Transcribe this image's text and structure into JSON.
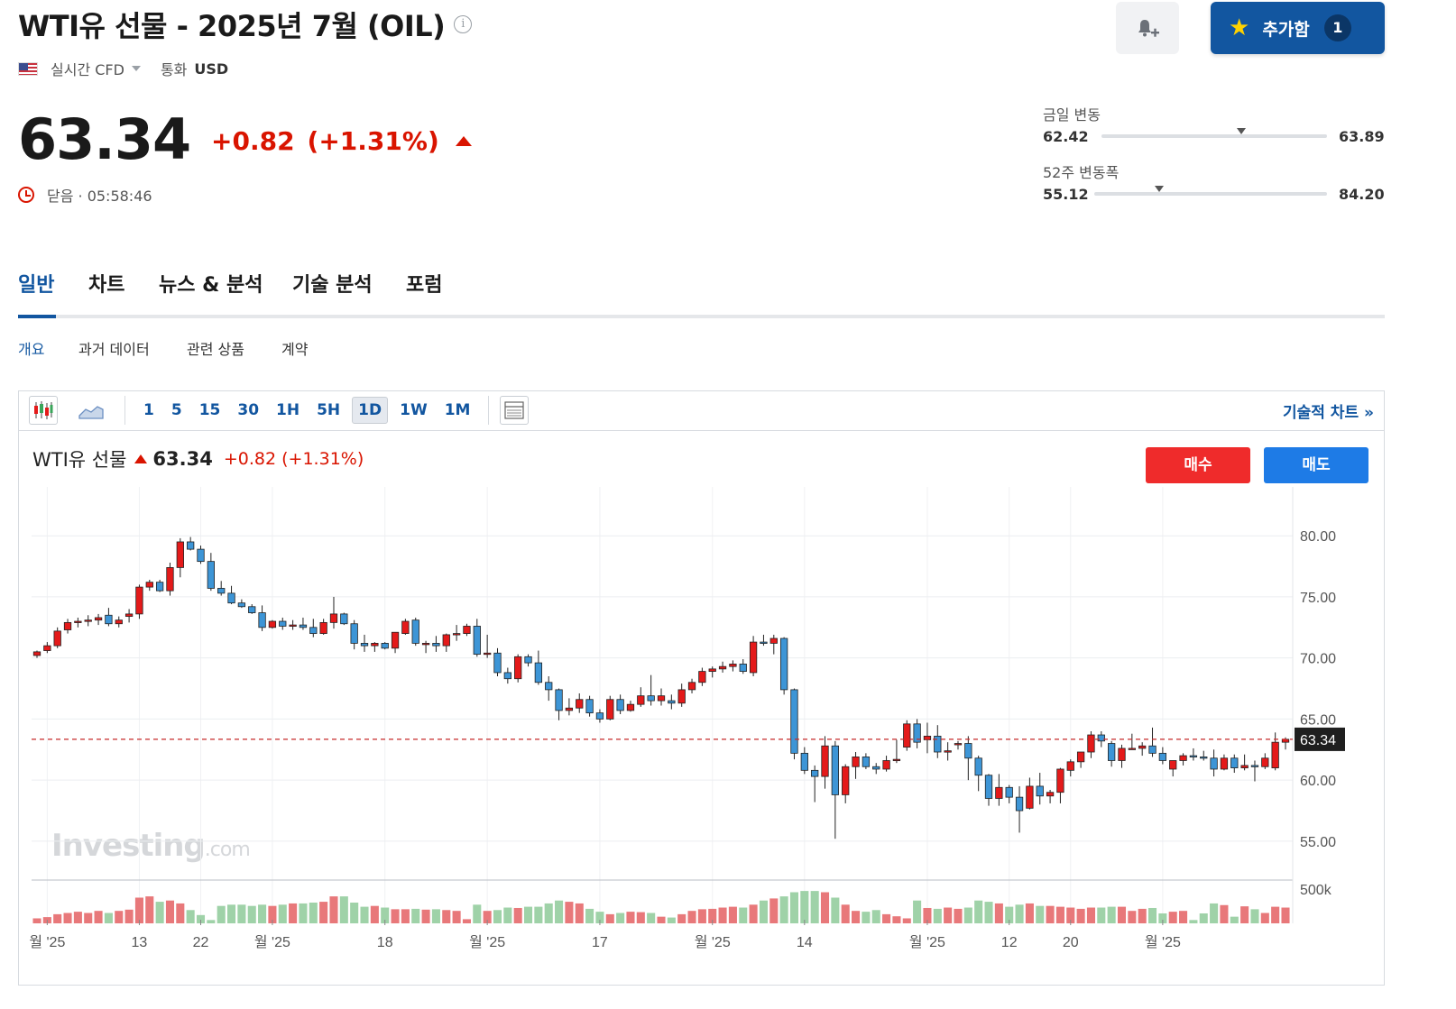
{
  "header": {
    "title": "WTI유 선물 - 2025년 7월 (OIL)",
    "info_icon": "i",
    "feed": "실시간 CFD",
    "currency_label": "통화",
    "currency_value": "USD",
    "watchlist_label": "추가함",
    "watchlist_count": "1"
  },
  "price": {
    "last": "63.34",
    "change": "+0.82",
    "change_pct": "(+1.31%)",
    "status": "닫음 · 05:58:46"
  },
  "ranges": {
    "day": {
      "label": "금일 변동",
      "low": "62.42",
      "high": "63.89",
      "marker_fraction": 0.62
    },
    "week52": {
      "label": "52주 변동폭",
      "low": "55.12",
      "high": "84.20",
      "marker_fraction": 0.28
    }
  },
  "tabs": [
    {
      "label": "일반"
    },
    {
      "label": "차트"
    },
    {
      "label": "뉴스 & 분석"
    },
    {
      "label": "기술 분석"
    },
    {
      "label": "포럼"
    }
  ],
  "subtabs": [
    {
      "label": "개요"
    },
    {
      "label": "과거 데이터"
    },
    {
      "label": "관련 상품"
    },
    {
      "label": "계약"
    }
  ],
  "toolbar": {
    "timeframes": [
      "1",
      "5",
      "15",
      "30",
      "1H",
      "5H",
      "1D",
      "1W",
      "1M"
    ],
    "active_timeframe": "1D",
    "tech_chart_link": "기술적 차트 »"
  },
  "chart_head": {
    "name": "WTI유 선물",
    "price": "63.34",
    "change": "+0.82",
    "change_pct": "(+1.31%)"
  },
  "buttons": {
    "buy": "매수",
    "sell": "매도"
  },
  "watermark": {
    "brand": "Investing",
    "suffix": ".com"
  },
  "colors": {
    "up": "#e41a1a",
    "down": "#3d95d6",
    "accent": "#1256a0",
    "negative_text": "#d91400",
    "volume_up": "#e8787a",
    "volume_down": "#9fd2a8"
  },
  "chart_data": {
    "type": "candlestick",
    "interval": "1D",
    "y_ticks": [
      "80.00",
      "75.00",
      "70.00",
      "65.00",
      "60.00",
      "55.00"
    ],
    "y_tick_values": [
      80,
      75,
      70,
      65,
      60,
      55
    ],
    "ylim": [
      53,
      84
    ],
    "volume_tick": "500k",
    "last_price_label": "63.34",
    "last_price": 63.34,
    "x_labels": [
      {
        "label": "월 '25",
        "index": 1
      },
      {
        "label": "13",
        "index": 10
      },
      {
        "label": "22",
        "index": 16
      },
      {
        "label": "월 '25",
        "index": 23
      },
      {
        "label": "18",
        "index": 34
      },
      {
        "label": "월 '25",
        "index": 44
      },
      {
        "label": "17",
        "index": 55
      },
      {
        "label": "월 '25",
        "index": 66
      },
      {
        "label": "14",
        "index": 75
      },
      {
        "label": "월 '25",
        "index": 87
      },
      {
        "label": "12",
        "index": 95
      },
      {
        "label": "20",
        "index": 101
      },
      {
        "label": "월 '25",
        "index": 110
      }
    ],
    "candles": [
      [
        70.2,
        70.6,
        70.0,
        70.5
      ],
      [
        70.6,
        71.3,
        70.4,
        71.0
      ],
      [
        71.0,
        72.5,
        70.8,
        72.2
      ],
      [
        72.3,
        73.2,
        72.0,
        72.9
      ],
      [
        72.9,
        73.3,
        72.5,
        73.0
      ],
      [
        73.0,
        73.5,
        72.6,
        73.1
      ],
      [
        73.1,
        73.6,
        72.7,
        73.3
      ],
      [
        73.5,
        74.1,
        72.6,
        72.8
      ],
      [
        72.8,
        73.4,
        72.5,
        73.1
      ],
      [
        73.4,
        74.0,
        72.9,
        73.6
      ],
      [
        73.6,
        76.0,
        73.2,
        75.8
      ],
      [
        75.8,
        76.4,
        75.5,
        76.2
      ],
      [
        76.2,
        76.4,
        75.4,
        75.5
      ],
      [
        75.5,
        77.8,
        75.1,
        77.4
      ],
      [
        77.4,
        79.8,
        76.6,
        79.5
      ],
      [
        79.5,
        79.9,
        78.8,
        78.9
      ],
      [
        78.9,
        79.2,
        77.7,
        77.9
      ],
      [
        77.9,
        78.6,
        75.5,
        75.7
      ],
      [
        75.7,
        76.3,
        75.1,
        75.3
      ],
      [
        75.3,
        75.9,
        74.4,
        74.5
      ],
      [
        74.5,
        74.8,
        74.1,
        74.2
      ],
      [
        74.2,
        74.4,
        73.6,
        73.7
      ],
      [
        73.7,
        74.3,
        72.2,
        72.5
      ],
      [
        72.5,
        73.1,
        72.4,
        73.0
      ],
      [
        73.0,
        73.3,
        72.3,
        72.6
      ],
      [
        72.6,
        73.1,
        72.3,
        72.7
      ],
      [
        72.7,
        73.3,
        72.3,
        72.5
      ],
      [
        72.5,
        73.2,
        71.7,
        72.0
      ],
      [
        72.0,
        73.2,
        71.9,
        72.9
      ],
      [
        72.9,
        75.0,
        72.4,
        73.6
      ],
      [
        73.6,
        73.7,
        72.7,
        72.8
      ],
      [
        72.8,
        73.1,
        70.7,
        71.2
      ],
      [
        71.2,
        71.9,
        70.5,
        71.0
      ],
      [
        71.0,
        71.3,
        70.5,
        71.2
      ],
      [
        71.2,
        71.3,
        70.7,
        70.8
      ],
      [
        70.8,
        72.0,
        70.4,
        72.1
      ],
      [
        72.0,
        73.2,
        71.9,
        73.0
      ],
      [
        73.1,
        73.3,
        71.0,
        71.2
      ],
      [
        71.2,
        71.4,
        70.4,
        71.2
      ],
      [
        71.2,
        71.8,
        70.5,
        71.0
      ],
      [
        71.0,
        72.0,
        70.5,
        71.9
      ],
      [
        71.9,
        72.7,
        71.4,
        72.0
      ],
      [
        72.0,
        72.8,
        71.8,
        72.6
      ],
      [
        72.6,
        73.2,
        70.1,
        70.3
      ],
      [
        70.3,
        71.9,
        70.0,
        70.4
      ],
      [
        70.4,
        70.8,
        68.5,
        68.8
      ],
      [
        68.8,
        69.2,
        67.9,
        68.3
      ],
      [
        68.3,
        70.3,
        68.0,
        70.1
      ],
      [
        70.1,
        70.3,
        69.3,
        69.6
      ],
      [
        69.6,
        70.6,
        67.8,
        68.0
      ],
      [
        68.0,
        68.5,
        66.5,
        67.4
      ],
      [
        67.4,
        67.5,
        64.9,
        65.7
      ],
      [
        65.7,
        66.7,
        65.3,
        65.9
      ],
      [
        65.9,
        67.1,
        65.5,
        66.6
      ],
      [
        66.6,
        66.9,
        65.2,
        65.5
      ],
      [
        65.5,
        65.8,
        64.7,
        65.0
      ],
      [
        65.0,
        66.9,
        64.9,
        66.6
      ],
      [
        66.6,
        67.0,
        65.4,
        65.7
      ],
      [
        65.7,
        66.5,
        65.6,
        66.2
      ],
      [
        66.2,
        67.6,
        66.0,
        66.9
      ],
      [
        66.9,
        68.6,
        66.1,
        66.5
      ],
      [
        66.5,
        67.5,
        66.1,
        66.9
      ],
      [
        66.5,
        67.0,
        65.8,
        66.3
      ],
      [
        66.3,
        67.9,
        66.0,
        67.4
      ],
      [
        67.4,
        68.3,
        67.1,
        68.0
      ],
      [
        68.0,
        69.2,
        67.7,
        68.9
      ],
      [
        68.9,
        69.3,
        68.4,
        69.1
      ],
      [
        69.1,
        69.7,
        68.8,
        69.3
      ],
      [
        69.3,
        69.8,
        68.9,
        69.5
      ],
      [
        69.5,
        69.9,
        68.7,
        68.9
      ],
      [
        68.8,
        71.8,
        68.5,
        71.3
      ],
      [
        71.3,
        71.9,
        71.0,
        71.2
      ],
      [
        71.2,
        71.9,
        70.3,
        71.6
      ],
      [
        71.6,
        71.7,
        67.0,
        67.4
      ],
      [
        67.4,
        67.5,
        61.7,
        62.2
      ],
      [
        62.2,
        62.7,
        60.5,
        60.8
      ],
      [
        60.8,
        61.2,
        58.2,
        60.3
      ],
      [
        60.3,
        63.6,
        59.3,
        62.8
      ],
      [
        62.8,
        63.2,
        55.2,
        58.8
      ],
      [
        58.8,
        61.3,
        58.1,
        61.1
      ],
      [
        61.1,
        62.3,
        60.1,
        61.9
      ],
      [
        61.9,
        62.2,
        60.9,
        61.1
      ],
      [
        61.1,
        61.4,
        60.5,
        60.9
      ],
      [
        60.9,
        62.0,
        60.7,
        61.6
      ],
      [
        61.6,
        63.3,
        61.4,
        61.7
      ],
      [
        62.7,
        64.9,
        62.4,
        64.6
      ],
      [
        64.6,
        65.0,
        62.6,
        63.1
      ],
      [
        63.3,
        64.7,
        62.2,
        63.6
      ],
      [
        63.6,
        64.5,
        61.8,
        62.3
      ],
      [
        62.3,
        63.1,
        61.6,
        62.4
      ],
      [
        62.9,
        63.2,
        62.5,
        63.0
      ],
      [
        63.0,
        63.6,
        60.0,
        61.8
      ],
      [
        61.8,
        62.0,
        59.1,
        60.4
      ],
      [
        60.4,
        60.5,
        57.9,
        58.5
      ],
      [
        58.5,
        60.5,
        57.9,
        59.4
      ],
      [
        59.4,
        59.6,
        58.1,
        58.6
      ],
      [
        58.6,
        59.5,
        55.7,
        57.5
      ],
      [
        57.7,
        60.2,
        57.6,
        59.5
      ],
      [
        59.5,
        60.6,
        58.0,
        58.7
      ],
      [
        58.7,
        59.2,
        58.1,
        59.0
      ],
      [
        59.0,
        61.0,
        58.1,
        60.9
      ],
      [
        60.8,
        61.7,
        60.3,
        61.5
      ],
      [
        61.5,
        62.3,
        61.0,
        62.3
      ],
      [
        62.3,
        64.0,
        61.8,
        63.7
      ],
      [
        63.7,
        64.0,
        62.7,
        63.2
      ],
      [
        63.0,
        63.2,
        61.1,
        61.6
      ],
      [
        61.6,
        62.9,
        61.0,
        62.6
      ],
      [
        62.6,
        63.8,
        62.5,
        62.6
      ],
      [
        62.6,
        63.1,
        62.0,
        62.8
      ],
      [
        62.8,
        64.3,
        61.9,
        62.2
      ],
      [
        62.2,
        62.7,
        61.3,
        61.6
      ],
      [
        60.9,
        61.5,
        60.3,
        61.6
      ],
      [
        61.6,
        62.2,
        61.2,
        62.0
      ],
      [
        62.0,
        62.6,
        61.6,
        61.9
      ],
      [
        61.9,
        62.4,
        61.6,
        61.8
      ],
      [
        61.8,
        62.5,
        60.3,
        60.9
      ],
      [
        60.9,
        62.1,
        60.8,
        61.8
      ],
      [
        61.8,
        62.1,
        60.6,
        61.0
      ],
      [
        61.0,
        62.1,
        60.8,
        61.2
      ],
      [
        61.2,
        61.6,
        59.9,
        61.1
      ],
      [
        61.1,
        62.2,
        60.9,
        61.8
      ],
      [
        61.0,
        63.9,
        60.8,
        63.1
      ],
      [
        63.1,
        63.5,
        62.5,
        63.34
      ]
    ],
    "volume": [
      0.12,
      0.15,
      0.22,
      0.25,
      0.28,
      0.25,
      0.3,
      0.25,
      0.3,
      0.33,
      0.62,
      0.65,
      0.52,
      0.55,
      0.48,
      0.32,
      0.2,
      0.08,
      0.42,
      0.45,
      0.45,
      0.42,
      0.45,
      0.42,
      0.45,
      0.48,
      0.48,
      0.5,
      0.52,
      0.65,
      0.65,
      0.5,
      0.4,
      0.42,
      0.38,
      0.34,
      0.34,
      0.35,
      0.33,
      0.34,
      0.32,
      0.3,
      0.1,
      0.45,
      0.3,
      0.32,
      0.38,
      0.37,
      0.4,
      0.4,
      0.48,
      0.55,
      0.52,
      0.48,
      0.35,
      0.28,
      0.22,
      0.25,
      0.28,
      0.27,
      0.25,
      0.16,
      0.14,
      0.22,
      0.3,
      0.34,
      0.35,
      0.38,
      0.4,
      0.38,
      0.45,
      0.55,
      0.6,
      0.65,
      0.75,
      0.78,
      0.78,
      0.75,
      0.62,
      0.45,
      0.3,
      0.28,
      0.32,
      0.22,
      0.17,
      0.12,
      0.55,
      0.37,
      0.35,
      0.38,
      0.35,
      0.38,
      0.55,
      0.52,
      0.48,
      0.4,
      0.45,
      0.48,
      0.42,
      0.42,
      0.4,
      0.38,
      0.35,
      0.38,
      0.38,
      0.4,
      0.4,
      0.3,
      0.35,
      0.37,
      0.24,
      0.28,
      0.3,
      0.08,
      0.24,
      0.48,
      0.44,
      0.16,
      0.41,
      0.34,
      0.25,
      0.4,
      0.38
    ]
  }
}
